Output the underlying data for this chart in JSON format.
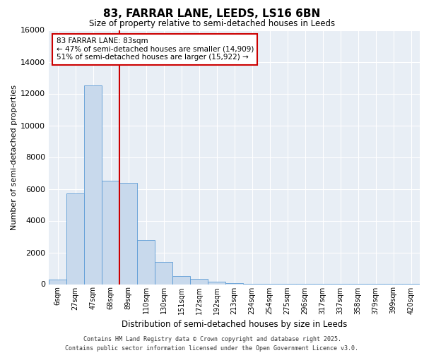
{
  "title_line1": "83, FARRAR LANE, LEEDS, LS16 6BN",
  "title_line2": "Size of property relative to semi-detached houses in Leeds",
  "xlabel": "Distribution of semi-detached houses by size in Leeds",
  "ylabel": "Number of semi-detached properties",
  "categories": [
    "6sqm",
    "27sqm",
    "47sqm",
    "68sqm",
    "89sqm",
    "110sqm",
    "130sqm",
    "151sqm",
    "172sqm",
    "192sqm",
    "213sqm",
    "234sqm",
    "254sqm",
    "275sqm",
    "296sqm",
    "317sqm",
    "337sqm",
    "358sqm",
    "379sqm",
    "399sqm",
    "420sqm"
  ],
  "values": [
    300,
    5700,
    12500,
    6500,
    6400,
    2800,
    1400,
    500,
    350,
    170,
    80,
    40,
    20,
    10,
    5,
    2,
    1,
    1,
    1,
    1,
    1
  ],
  "bar_color": "#c8d9ec",
  "bar_edge_color": "#5b9bd5",
  "vline_color": "#cc0000",
  "annotation_title": "83 FARRAR LANE: 83sqm",
  "annotation_line1": "← 47% of semi-detached houses are smaller (14,909)",
  "annotation_line2": "51% of semi-detached houses are larger (15,922) →",
  "annotation_box_facecolor": "#ffffff",
  "annotation_box_edgecolor": "#cc0000",
  "footer_line1": "Contains HM Land Registry data © Crown copyright and database right 2025.",
  "footer_line2": "Contains public sector information licensed under the Open Government Licence v3.0.",
  "ylim": [
    0,
    16000
  ],
  "yticks": [
    0,
    2000,
    4000,
    6000,
    8000,
    10000,
    12000,
    14000,
    16000
  ],
  "plot_bg_color": "#e8eef5",
  "grid_color": "#ffffff",
  "fig_bg_color": "#ffffff",
  "vline_x_index": 3.5
}
